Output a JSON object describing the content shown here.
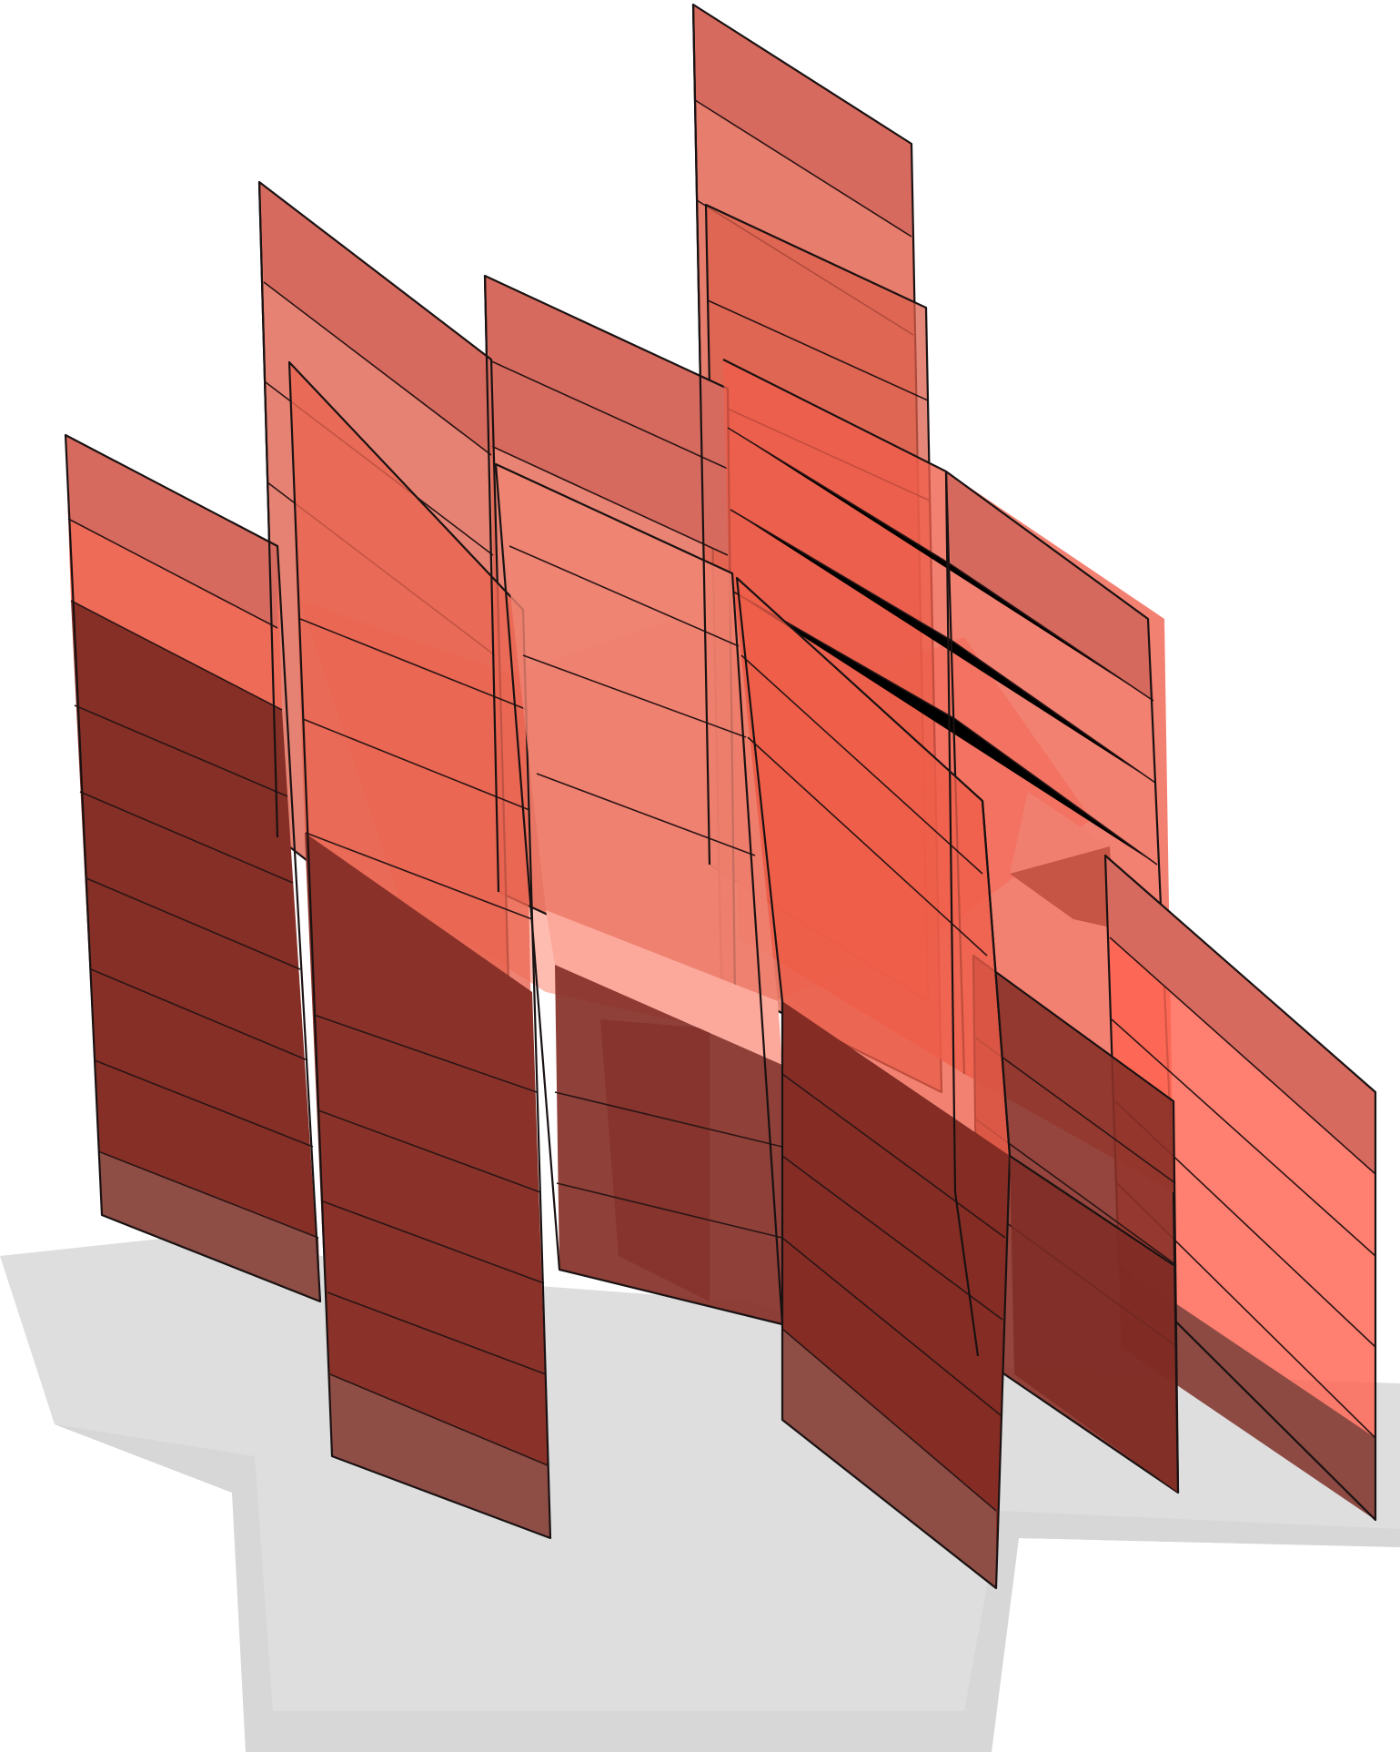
{
  "scene": {
    "subject": "translucent-red-sheet-stack",
    "colors": {
      "background": "#ffffff",
      "sheet_light": "#f0705c",
      "sheet_mid": "#e0604c",
      "sheet_bright": "#ff6a55",
      "sheet_top": "#d66a5e",
      "sheet_dark": "#8a3128",
      "sheet_darkest": "#7a2a22",
      "sheet_bottom": "#8e4e46",
      "highlight": "#fcc6bd",
      "shadow": "#d9d9d9",
      "edge": "#1a1212"
    }
  }
}
